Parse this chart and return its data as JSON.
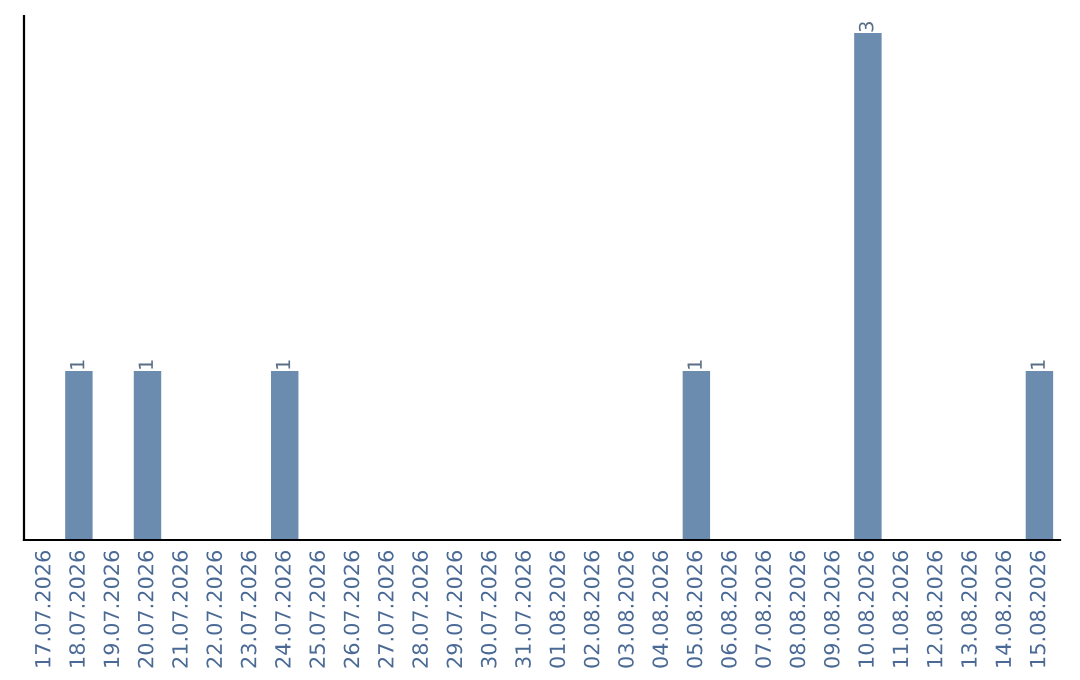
{
  "chart_data": {
    "type": "bar",
    "categories": [
      "17.07.2026",
      "18.07.2026",
      "19.07.2026",
      "20.07.2026",
      "21.07.2026",
      "22.07.2026",
      "23.07.2026",
      "24.07.2026",
      "25.07.2026",
      "26.07.2026",
      "27.07.2026",
      "28.07.2026",
      "29.07.2026",
      "30.07.2026",
      "31.07.2026",
      "01.08.2026",
      "02.08.2026",
      "03.08.2026",
      "04.08.2026",
      "05.08.2026",
      "06.08.2026",
      "07.08.2026",
      "08.08.2026",
      "09.08.2026",
      "10.08.2026",
      "11.08.2026",
      "12.08.2026",
      "13.08.2026",
      "14.08.2026",
      "15.08.2026"
    ],
    "values": [
      0,
      1,
      0,
      1,
      0,
      0,
      0,
      1,
      0,
      0,
      0,
      0,
      0,
      0,
      0,
      0,
      0,
      0,
      0,
      1,
      0,
      0,
      0,
      0,
      3,
      0,
      0,
      0,
      0,
      1
    ],
    "color": "#6b8cae",
    "ylim": [
      0,
      3.1
    ],
    "value_labels": [
      null,
      "1",
      null,
      "1",
      null,
      null,
      null,
      "1",
      null,
      null,
      null,
      null,
      null,
      null,
      null,
      null,
      null,
      null,
      null,
      "1",
      null,
      null,
      null,
      null,
      "3",
      null,
      null,
      null,
      null,
      "1"
    ],
    "grid": false,
    "legend": false
  }
}
